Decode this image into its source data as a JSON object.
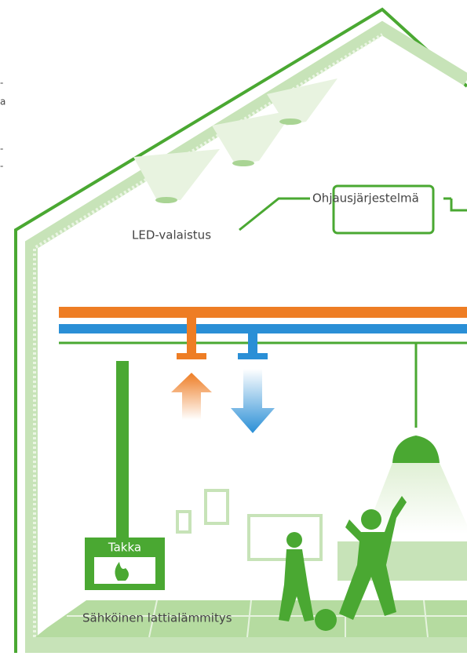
{
  "labels": {
    "led": "LED-valaistus",
    "control": "Ohjausjärjestelmä",
    "fireplace": "Takka",
    "floor_heating": "Sähköinen lattialämmitys"
  },
  "edge_text": [
    "-",
    "a",
    "-",
    "-"
  ]
}
